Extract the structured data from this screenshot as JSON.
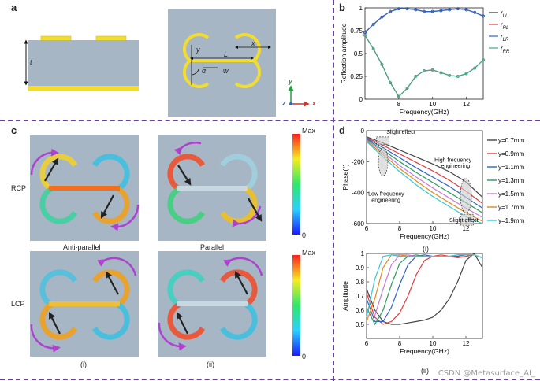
{
  "panels": {
    "a": "a",
    "b": "b",
    "c": "c",
    "d": "d"
  },
  "panel_a": {
    "thickness": "t",
    "y": "y",
    "L": "L",
    "x": "x",
    "w": "w",
    "alpha": "α",
    "axis_y": "y",
    "axis_z": "z",
    "axis_x": "x"
  },
  "panel_c": {
    "row_rcp": "RCP",
    "row_lcp": "LCP",
    "caption_anti": "Anti-parallel",
    "caption_parallel": "Parallel",
    "sub_i": "(i)",
    "sub_ii": "(ii)",
    "cbar_max": "Max",
    "cbar_min": "0"
  },
  "panel_d": {
    "sub_i": "(i)",
    "sub_ii": "(ii)",
    "ann_slight1": "Slight effect",
    "ann_high1": "High frequency",
    "ann_high2": "engineering",
    "ann_low1": "Low frequency",
    "ann_low2": "engineering",
    "ann_slight2": "Slight effect"
  },
  "watermark": "CSDN @Metasurface_AI_",
  "colors": {
    "yellow": "#f2dc2f",
    "substrate": "#a6b6c4",
    "purple": "#6a3fa0"
  },
  "chart_data": [
    {
      "id": "b",
      "type": "line",
      "title": "",
      "xlabel": "Frequency(GHz)",
      "ylabel": "Reflection amplitude",
      "xlim": [
        6,
        13
      ],
      "ylim": [
        0,
        1
      ],
      "xticks": [
        8,
        10,
        12
      ],
      "yticks": [
        0,
        0.25,
        0.5,
        0.75,
        1
      ],
      "ytick_labels": [
        "0",
        "0.25",
        "0.5",
        "0.75",
        "1"
      ],
      "x": [
        6,
        6.5,
        7,
        7.5,
        8,
        8.5,
        9,
        9.5,
        10,
        10.5,
        11,
        11.5,
        12,
        12.5,
        13
      ],
      "series": [
        {
          "name": "r_LL",
          "label": "r",
          "sub": "LL",
          "color": "#333333",
          "values": [
            0.73,
            0.82,
            0.9,
            0.96,
            0.99,
            0.99,
            0.98,
            0.96,
            0.96,
            0.97,
            0.98,
            0.99,
            0.98,
            0.95,
            0.91
          ]
        },
        {
          "name": "r_RL",
          "label": "r",
          "sub": "RL",
          "color": "#e03c3c",
          "values": [
            0.7,
            0.55,
            0.38,
            0.18,
            0.03,
            0.12,
            0.25,
            0.31,
            0.32,
            0.29,
            0.26,
            0.25,
            0.28,
            0.34,
            0.43
          ]
        },
        {
          "name": "r_LR",
          "label": "r",
          "sub": "LR",
          "color": "#2f63c8",
          "values": [
            0.73,
            0.82,
            0.9,
            0.96,
            0.99,
            0.99,
            0.98,
            0.96,
            0.96,
            0.97,
            0.98,
            0.99,
            0.98,
            0.95,
            0.91
          ]
        },
        {
          "name": "r_RR",
          "label": "r",
          "sub": "RR",
          "color": "#3aa98a",
          "values": [
            0.7,
            0.55,
            0.38,
            0.18,
            0.03,
            0.12,
            0.25,
            0.31,
            0.32,
            0.29,
            0.26,
            0.25,
            0.28,
            0.34,
            0.43
          ]
        }
      ]
    },
    {
      "id": "d_i",
      "type": "line",
      "xlabel": "Frequency(GHz)",
      "ylabel": "Phase(°)",
      "xlim": [
        6,
        13
      ],
      "ylim": [
        -600,
        0
      ],
      "xticks": [
        6,
        8,
        10,
        12
      ],
      "yticks": [
        -600,
        -400,
        -200,
        0
      ],
      "x": [
        6,
        7,
        8,
        9,
        10,
        11,
        12,
        13
      ],
      "series": [
        {
          "name": "y=0.7mm",
          "color": "#444444",
          "values": [
            -40,
            -80,
            -125,
            -170,
            -215,
            -265,
            -330,
            -430
          ]
        },
        {
          "name": "y=0.9mm",
          "color": "#e03c3c",
          "values": [
            -45,
            -95,
            -150,
            -205,
            -260,
            -320,
            -390,
            -470
          ]
        },
        {
          "name": "y=1.1mm",
          "color": "#2f63c8",
          "values": [
            -50,
            -110,
            -175,
            -240,
            -300,
            -360,
            -430,
            -500
          ]
        },
        {
          "name": "y=1.3mm",
          "color": "#2a9a5a",
          "values": [
            -55,
            -125,
            -200,
            -270,
            -335,
            -400,
            -465,
            -530
          ]
        },
        {
          "name": "y=1.5mm",
          "color": "#c77bd8",
          "values": [
            -60,
            -140,
            -225,
            -300,
            -370,
            -435,
            -500,
            -560
          ]
        },
        {
          "name": "y=1.7mm",
          "color": "#e08a1a",
          "values": [
            -65,
            -155,
            -245,
            -325,
            -400,
            -465,
            -530,
            -585
          ]
        },
        {
          "name": "y=1.9mm",
          "color": "#35c8d8",
          "values": [
            -70,
            -170,
            -265,
            -350,
            -425,
            -490,
            -555,
            -600
          ]
        }
      ]
    },
    {
      "id": "d_ii",
      "type": "line",
      "xlabel": "Frequency(GHz)",
      "ylabel": "Amplitude",
      "xlim": [
        6,
        13
      ],
      "ylim": [
        0.4,
        1
      ],
      "xticks": [
        6,
        8,
        10,
        12
      ],
      "yticks": [
        0.5,
        0.6,
        0.7,
        0.8,
        0.9,
        1
      ],
      "ytick_labels": [
        "0.5",
        "0.6",
        "0.7",
        "0.8",
        "0.9",
        "1"
      ],
      "x": [
        6,
        6.5,
        7,
        7.5,
        8,
        8.5,
        9,
        9.5,
        10,
        10.5,
        11,
        11.5,
        12,
        12.5,
        13
      ],
      "series": [
        {
          "name": "y=0.7mm",
          "color": "#444444",
          "values": [
            0.75,
            0.6,
            0.52,
            0.5,
            0.5,
            0.51,
            0.52,
            0.53,
            0.55,
            0.6,
            0.68,
            0.8,
            0.95,
            1.0,
            0.9
          ]
        },
        {
          "name": "y=0.9mm",
          "color": "#e03c3c",
          "values": [
            0.72,
            0.55,
            0.5,
            0.52,
            0.58,
            0.7,
            0.85,
            0.95,
            0.98,
            0.99,
            0.98,
            0.97,
            0.98,
            0.99,
            0.97
          ]
        },
        {
          "name": "y=1.1mm",
          "color": "#2f63c8",
          "values": [
            0.68,
            0.52,
            0.52,
            0.62,
            0.78,
            0.92,
            0.98,
            0.99,
            0.98,
            0.98,
            0.98,
            0.98,
            0.99,
            0.99,
            0.97
          ]
        },
        {
          "name": "y=1.3mm",
          "color": "#2a9a5a",
          "values": [
            0.62,
            0.5,
            0.6,
            0.78,
            0.93,
            0.98,
            0.99,
            0.98,
            0.98,
            0.98,
            0.98,
            0.99,
            0.99,
            0.99,
            0.97
          ]
        },
        {
          "name": "y=1.5mm",
          "color": "#c77bd8",
          "values": [
            0.56,
            0.56,
            0.75,
            0.92,
            0.99,
            0.99,
            0.98,
            0.98,
            0.98,
            0.98,
            0.98,
            0.99,
            0.99,
            0.99,
            0.97
          ]
        },
        {
          "name": "y=1.7mm",
          "color": "#e08a1a",
          "values": [
            0.52,
            0.68,
            0.9,
            0.99,
            0.99,
            0.98,
            0.98,
            0.98,
            0.98,
            0.98,
            0.98,
            0.99,
            0.99,
            0.99,
            0.97
          ]
        },
        {
          "name": "y=1.9mm",
          "color": "#35c8d8",
          "values": [
            0.55,
            0.82,
            0.98,
            0.99,
            0.98,
            0.98,
            0.98,
            0.98,
            0.98,
            0.98,
            0.98,
            0.99,
            0.99,
            0.99,
            0.97
          ]
        }
      ]
    }
  ]
}
